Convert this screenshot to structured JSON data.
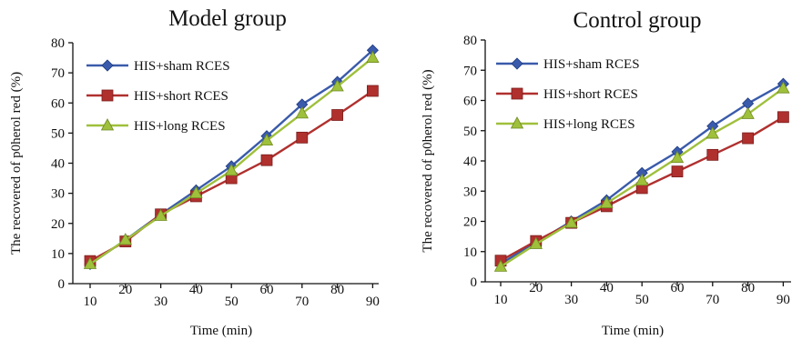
{
  "chart_data": [
    {
      "type": "line",
      "title": "Model group",
      "xlabel": "Time (min)",
      "ylabel": "The recovered of p0herol red (%)",
      "categories": [
        "10",
        "20",
        "30",
        "40",
        "50",
        "60",
        "70",
        "80",
        "90"
      ],
      "ylim": [
        0,
        80
      ],
      "yticks": [
        0,
        10,
        20,
        30,
        40,
        50,
        60,
        70,
        80
      ],
      "xtick_labels": [
        "10",
        "20",
        "30",
        "40",
        "50",
        "60",
        "70",
        "80",
        "90"
      ],
      "grid": false,
      "legend": "top-left",
      "series": [
        {
          "name": "HIS+sham RCES",
          "color": "#3a5bab",
          "marker": "diamond",
          "values": [
            6.5,
            14.5,
            23,
            31,
            39,
            49,
            59.5,
            67,
            77.5
          ]
        },
        {
          "name": "HIS+short RCES",
          "color": "#b0302e",
          "marker": "square",
          "values": [
            7.5,
            14,
            23,
            29,
            35,
            41,
            48.5,
            56,
            64
          ]
        },
        {
          "name": "HIS+long  RCES",
          "color": "#9fc03b",
          "marker": "triangle",
          "values": [
            6.5,
            14.5,
            22.5,
            30,
            37.5,
            47.5,
            56.5,
            65.5,
            75
          ]
        }
      ]
    },
    {
      "type": "line",
      "title": "Control group",
      "xlabel": "Time (min)",
      "ylabel": "The recovered of p0herol red (%)",
      "categories": [
        "10",
        "20",
        "30",
        "40",
        "50",
        "60",
        "70",
        "80",
        "90"
      ],
      "ylim": [
        0,
        80
      ],
      "yticks": [
        0,
        10,
        20,
        30,
        40,
        50,
        60,
        70,
        80
      ],
      "xtick_labels": [
        "10",
        "20",
        "30",
        "40",
        "50",
        "60",
        "70",
        "80",
        "90"
      ],
      "grid": false,
      "legend": "top-left",
      "series": [
        {
          "name": "HIS+sham RCES",
          "color": "#3a5bab",
          "marker": "diamond",
          "values": [
            6,
            13,
            20,
            27,
            36,
            43,
            51.5,
            59,
            65.5
          ]
        },
        {
          "name": "HIS+short RCES",
          "color": "#b0302e",
          "marker": "square",
          "values": [
            7,
            13.5,
            19.5,
            25,
            31,
            36.5,
            42,
            47.5,
            54.5
          ]
        },
        {
          "name": "HIS+long  RCES",
          "color": "#9fc03b",
          "marker": "triangle",
          "values": [
            5,
            12.5,
            19.5,
            26,
            33.5,
            41,
            49,
            55.5,
            64
          ]
        }
      ]
    }
  ]
}
